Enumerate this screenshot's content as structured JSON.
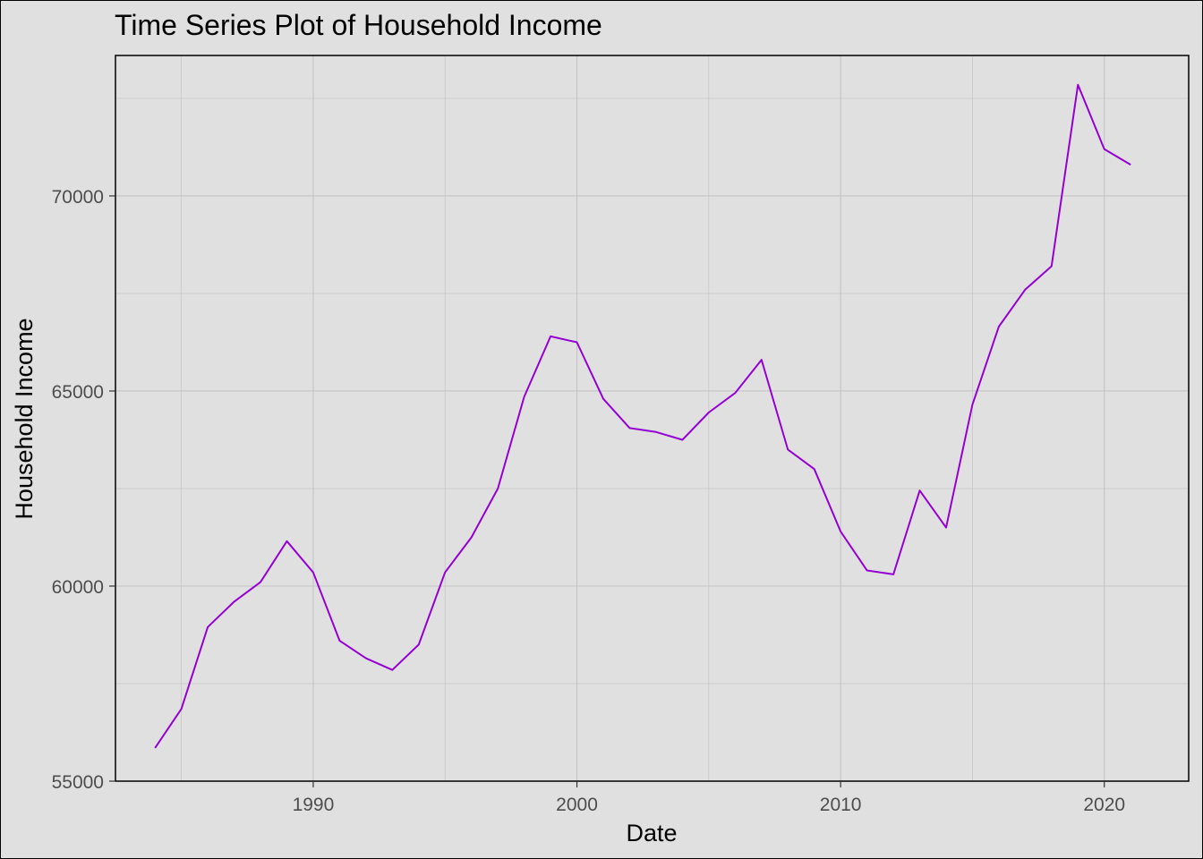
{
  "chart_data": {
    "type": "line",
    "title": "Time Series Plot of Household Income",
    "xlabel": "Date",
    "ylabel": "Household Income",
    "xlim": [
      1982.5,
      2023.2
    ],
    "ylim": [
      55000,
      73600
    ],
    "x_ticks": [
      1990,
      2000,
      2010,
      2020
    ],
    "y_ticks": [
      55000,
      60000,
      65000,
      70000
    ],
    "grid": true,
    "legend": "none",
    "colors": {
      "line": "#9400d3",
      "background": "#e0e0e0",
      "grid": "#c4c4c4",
      "axis_text": "#4d4d4d"
    },
    "series": [
      {
        "x": [
          1984,
          1985,
          1986,
          1987,
          1988,
          1989,
          1990,
          1991,
          1992,
          1993,
          1994,
          1995,
          1996,
          1997,
          1998,
          1999,
          2000,
          2001,
          2002,
          2003,
          2004,
          2005,
          2006,
          2007,
          2008,
          2009,
          2010,
          2011,
          2012,
          2013,
          2014,
          2015,
          2016,
          2017,
          2018,
          2019,
          2020,
          2021
        ],
        "values": [
          55850,
          56850,
          58950,
          59600,
          60100,
          61150,
          60350,
          58600,
          58150,
          57850,
          58500,
          60350,
          61250,
          62500,
          64850,
          66400,
          66250,
          64800,
          64050,
          63950,
          63750,
          64450,
          64950,
          65800,
          63500,
          63000,
          61400,
          60400,
          60300,
          62450,
          61500,
          64650,
          66650,
          67600,
          68200,
          72850,
          71200,
          70800
        ]
      }
    ]
  }
}
